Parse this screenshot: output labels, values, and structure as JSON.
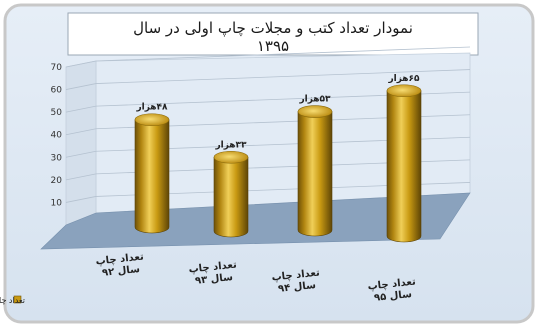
{
  "chart_data": {
    "type": "bar",
    "title_lines": [
      "نمودار تعداد کتب و مجلات چاپ اولی در سال",
      "۱۳۹۵"
    ],
    "categories": [
      [
        "تعداد چاپ",
        "سال ۹۲"
      ],
      [
        "تعداد چاپ",
        "سال ۹۳"
      ],
      [
        "تعداد چاپ",
        "سال ۹۴"
      ],
      [
        "تعداد چاپ",
        "سال ۹۵"
      ]
    ],
    "series": [
      {
        "name": "تعداد چاپ اول",
        "values": [
          48,
          33,
          53,
          65
        ],
        "data_labels": [
          "۴۸هزار",
          "۳۳هزار",
          "۵۳هزار",
          "۶۵هزار"
        ],
        "color": "#c99a12"
      }
    ],
    "yticks": [
      10,
      20,
      30,
      40,
      50,
      60,
      70
    ],
    "ylim": [
      0,
      70
    ],
    "grid": true,
    "legend_position": "bottom-left",
    "style": "3d-cylinder"
  },
  "colors": {
    "frame_border": "#c8c8c8",
    "plot_background": "#dfe9f3",
    "floor": "#8aa2bd",
    "bar_light": "#f0cf58",
    "bar_mid": "#c99a12",
    "bar_dark": "#6e5208"
  }
}
